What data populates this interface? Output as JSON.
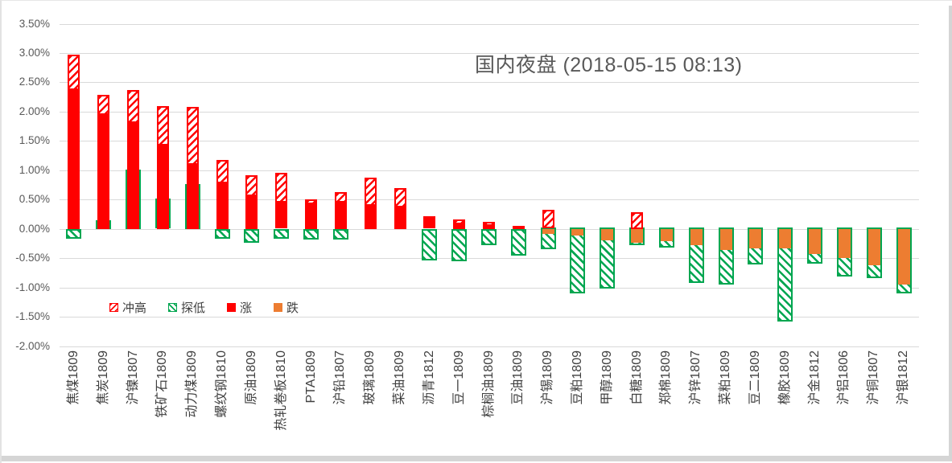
{
  "title": {
    "text": "国内夜盘 (2018-05-15 08:13)",
    "color": "#595959"
  },
  "legend": {
    "items": [
      {
        "label": "冲高",
        "swatch": "hatch-red"
      },
      {
        "label": "探低",
        "swatch": "hatch-green"
      },
      {
        "label": "涨",
        "swatch": "solid-red"
      },
      {
        "label": "跌",
        "swatch": "solid-orange"
      }
    ]
  },
  "colors": {
    "up": "#FF0000",
    "down": "#ED7D31",
    "low": "#00A650",
    "gridline": "#D9D9D9",
    "axis_text": "#595959",
    "category_text": "#404040",
    "title_text": "#595959"
  },
  "y_axis": {
    "ticks": [
      "3.50%",
      "3.00%",
      "2.50%",
      "2.00%",
      "1.50%",
      "1.00%",
      "0.50%",
      "0.00%",
      "-0.50%",
      "-1.00%",
      "-1.50%",
      "-2.00%"
    ],
    "max": 3.5,
    "min": -2.0,
    "step": 0.5
  },
  "chart_data": {
    "type": "bar",
    "subtype": "overlapped-high-low-close-percent",
    "title": "国内夜盘 (2018-05-15 08:13)",
    "ylabel": "",
    "xlabel": "",
    "ylim": [
      -2.0,
      3.5
    ],
    "y_tick_step": 0.5,
    "grid": true,
    "legend_position": "inside-left",
    "unit": "%",
    "categories": [
      "焦煤1809",
      "焦炭1809",
      "沪镍1807",
      "铁矿石1809",
      "动力煤1809",
      "螺纹钢1810",
      "原油1809",
      "热轧卷板1810",
      "PTA1809",
      "沪铅1807",
      "玻璃1809",
      "菜油1809",
      "沥青1812",
      "豆一1809",
      "棕榈油1809",
      "豆油1809",
      "沪锡1809",
      "豆粕1809",
      "甲醇1809",
      "白糖1809",
      "郑棉1809",
      "沪锌1807",
      "菜粕1809",
      "豆二1809",
      "橡胶1809",
      "沪金1812",
      "沪铝1806",
      "沪铜1807",
      "沪银1812"
    ],
    "series": [
      {
        "name": "冲高",
        "role": "session-high",
        "values": [
          2.97,
          2.28,
          2.37,
          2.1,
          2.08,
          1.18,
          0.92,
          0.95,
          0.5,
          0.63,
          0.88,
          0.69,
          0.21,
          0.16,
          0.12,
          0.05,
          0.32,
          null,
          null,
          0.29,
          null,
          null,
          null,
          null,
          null,
          null,
          null,
          null,
          null
        ]
      },
      {
        "name": "探低",
        "role": "session-low",
        "values": [
          -0.17,
          0.15,
          1.01,
          0.51,
          0.77,
          -0.16,
          -0.24,
          -0.16,
          -0.18,
          -0.18,
          null,
          null,
          -0.54,
          -0.55,
          -0.27,
          -0.45,
          -0.34,
          -1.1,
          -1.02,
          -0.28,
          -0.31,
          -0.92,
          -0.94,
          -0.6,
          -1.58,
          -0.59,
          -0.81,
          -0.83,
          -1.1
        ]
      },
      {
        "name": "涨",
        "role": "close-up",
        "values": [
          2.4,
          1.97,
          1.84,
          1.45,
          1.12,
          0.8,
          0.58,
          0.47,
          0.45,
          0.47,
          0.42,
          0.4,
          0.21,
          0.1,
          0.08,
          0.04,
          null,
          null,
          null,
          null,
          null,
          null,
          null,
          null,
          null,
          null,
          null,
          null,
          null
        ]
      },
      {
        "name": "跌",
        "role": "close-down",
        "values": [
          null,
          null,
          null,
          null,
          null,
          null,
          null,
          null,
          null,
          null,
          null,
          null,
          null,
          null,
          null,
          null,
          -0.08,
          -0.11,
          -0.19,
          -0.23,
          -0.2,
          -0.28,
          -0.35,
          -0.33,
          -0.33,
          -0.43,
          -0.49,
          -0.62,
          -0.94
        ]
      }
    ]
  }
}
